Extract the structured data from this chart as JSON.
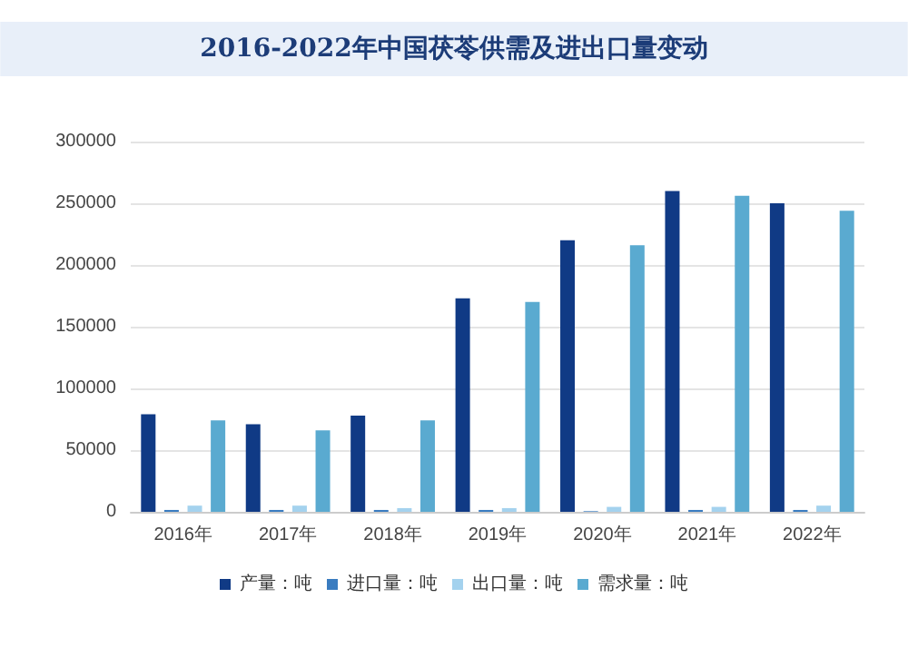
{
  "chart_data": {
    "type": "bar",
    "title": "2016-2022年中国茯苓供需及进出口量变动",
    "categories": [
      "2016年",
      "2017年",
      "2018年",
      "2019年",
      "2020年",
      "2021年",
      "2022年"
    ],
    "series": [
      {
        "name": "产量：吨",
        "color": "#103a85",
        "values": [
          79000,
          71000,
          78000,
          173000,
          220000,
          260000,
          250000
        ]
      },
      {
        "name": "进口量：吨",
        "color": "#3a7cc0",
        "values": [
          1500,
          1500,
          1500,
          1500,
          500,
          1500,
          1500
        ]
      },
      {
        "name": "出口量：吨",
        "color": "#a4d2ee",
        "values": [
          5000,
          5000,
          3000,
          3000,
          4000,
          4000,
          5000
        ]
      },
      {
        "name": "需求量：吨",
        "color": "#5aaad0",
        "values": [
          74000,
          66000,
          74000,
          170000,
          216000,
          256000,
          244000
        ]
      }
    ],
    "ylim": [
      0,
      300000
    ],
    "yticks": [
      0,
      50000,
      100000,
      150000,
      200000,
      250000,
      300000
    ],
    "grid": "y",
    "legend": "bottom"
  }
}
